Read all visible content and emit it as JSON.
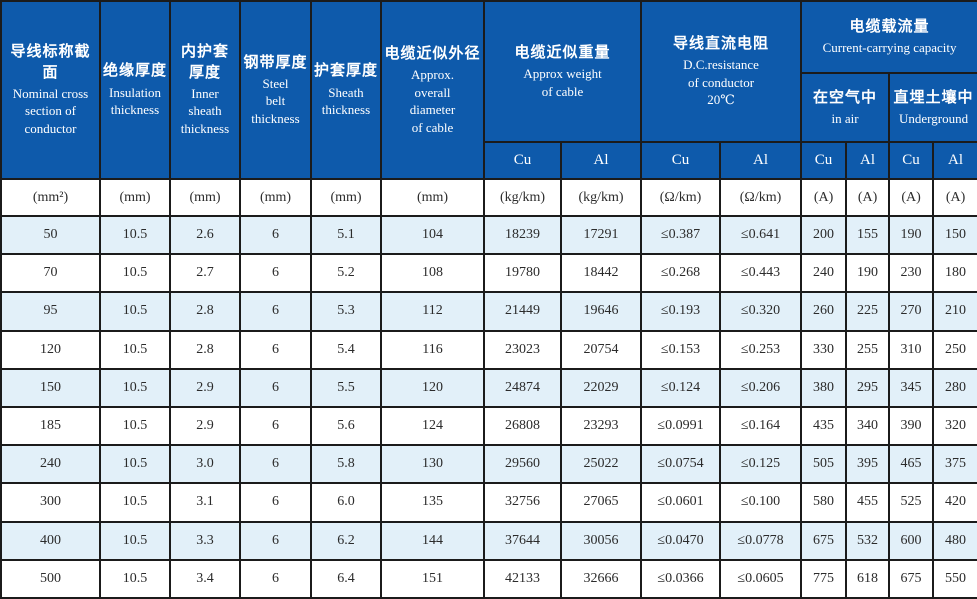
{
  "table": {
    "header_bg": "#0e5aab",
    "header_text_color": "#ffffff",
    "row_alt_bg": "#e2f0f9",
    "border_color": "#1b1b1b",
    "columns": [
      {
        "zh": "导线标称截面",
        "en": "Nominal cross\nsection of\nconductor"
      },
      {
        "zh": "绝缘厚度",
        "en": "Insulation\nthickness"
      },
      {
        "zh": "内护套\n厚度",
        "en": "Inner\nsheath\nthickness"
      },
      {
        "zh": "钢带厚度",
        "en": "Steel\nbelt\nthickness"
      },
      {
        "zh": "护套厚度",
        "en": "Sheath\nthickness"
      },
      {
        "zh": "电缆近似外径",
        "en": "Approx.\noverall\ndiameter\nof cable"
      }
    ],
    "groups": {
      "weight": {
        "zh": "电缆近似重量",
        "en": "Approx weight\nof cable"
      },
      "resistance": {
        "zh": "导线直流电阻",
        "en": "D.C.resistance\nof conductor\n20℃"
      },
      "capacity": {
        "zh": "电缆载流量",
        "en": "Current-carrying capacity"
      },
      "in_air": {
        "zh": "在空气中",
        "en": "in air"
      },
      "underground": {
        "zh": "直埋土壤中",
        "en": "Underground"
      }
    },
    "subheaders": [
      "Cu",
      "Al",
      "Cu",
      "Al",
      "Cu",
      "Al",
      "Cu",
      "Al"
    ],
    "units": [
      "(mm²)",
      "(mm)",
      "(mm)",
      "(mm)",
      "(mm)",
      "(mm)",
      "(kg/km)",
      "(kg/km)",
      "(Ω/km)",
      "(Ω/km)",
      "(A)",
      "(A)",
      "(A)",
      "(A)"
    ],
    "rows": [
      [
        "50",
        "10.5",
        "2.6",
        "6",
        "5.1",
        "104",
        "18239",
        "17291",
        "≤0.387",
        "≤0.641",
        "200",
        "155",
        "190",
        "150"
      ],
      [
        "70",
        "10.5",
        "2.7",
        "6",
        "5.2",
        "108",
        "19780",
        "18442",
        "≤0.268",
        "≤0.443",
        "240",
        "190",
        "230",
        "180"
      ],
      [
        "95",
        "10.5",
        "2.8",
        "6",
        "5.3",
        "112",
        "21449",
        "19646",
        "≤0.193",
        "≤0.320",
        "260",
        "225",
        "270",
        "210"
      ],
      [
        "120",
        "10.5",
        "2.8",
        "6",
        "5.4",
        "116",
        "23023",
        "20754",
        "≤0.153",
        "≤0.253",
        "330",
        "255",
        "310",
        "250"
      ],
      [
        "150",
        "10.5",
        "2.9",
        "6",
        "5.5",
        "120",
        "24874",
        "22029",
        "≤0.124",
        "≤0.206",
        "380",
        "295",
        "345",
        "280"
      ],
      [
        "185",
        "10.5",
        "2.9",
        "6",
        "5.6",
        "124",
        "26808",
        "23293",
        "≤0.0991",
        "≤0.164",
        "435",
        "340",
        "390",
        "320"
      ],
      [
        "240",
        "10.5",
        "3.0",
        "6",
        "5.8",
        "130",
        "29560",
        "25022",
        "≤0.0754",
        "≤0.125",
        "505",
        "395",
        "465",
        "375"
      ],
      [
        "300",
        "10.5",
        "3.1",
        "6",
        "6.0",
        "135",
        "32756",
        "27065",
        "≤0.0601",
        "≤0.100",
        "580",
        "455",
        "525",
        "420"
      ],
      [
        "400",
        "10.5",
        "3.3",
        "6",
        "6.2",
        "144",
        "37644",
        "30056",
        "≤0.0470",
        "≤0.0778",
        "675",
        "532",
        "600",
        "480"
      ],
      [
        "500",
        "10.5",
        "3.4",
        "6",
        "6.4",
        "151",
        "42133",
        "32666",
        "≤0.0366",
        "≤0.0605",
        "775",
        "618",
        "675",
        "550"
      ]
    ]
  }
}
